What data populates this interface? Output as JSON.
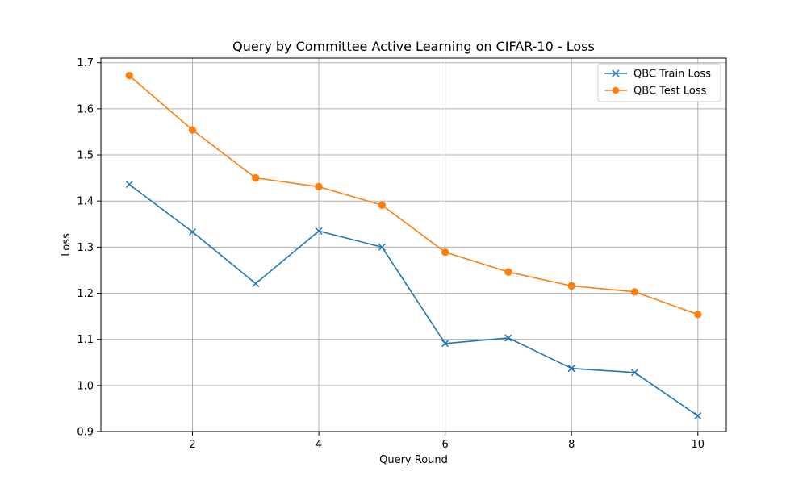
{
  "chart_data": {
    "type": "line",
    "title": "Query by Committee Active Learning on CIFAR-10 - Loss",
    "xlabel": "Query Round",
    "ylabel": "Loss",
    "x": [
      1,
      2,
      3,
      4,
      5,
      6,
      7,
      8,
      9,
      10
    ],
    "xlim": [
      0.55,
      10.45
    ],
    "ylim": [
      0.9,
      1.71
    ],
    "xticks": [
      2,
      4,
      6,
      8,
      10
    ],
    "yticks": [
      0.9,
      1.0,
      1.1,
      1.2,
      1.3,
      1.4,
      1.5,
      1.6,
      1.7
    ],
    "xtick_labels": [
      "2",
      "4",
      "6",
      "8",
      "10"
    ],
    "ytick_labels": [
      "0.9",
      "1.0",
      "1.1",
      "1.2",
      "1.3",
      "1.4",
      "1.5",
      "1.6",
      "1.7"
    ],
    "grid": true,
    "legend_position": "top-right",
    "series": [
      {
        "name": "QBC Train Loss",
        "color": "#1f77b4",
        "marker": "x",
        "values": [
          1.436,
          1.333,
          1.221,
          1.335,
          1.3,
          1.091,
          1.103,
          1.037,
          1.028,
          0.934
        ]
      },
      {
        "name": "QBC Test Loss",
        "color": "#ff7f0e",
        "marker": "o",
        "values": [
          1.672,
          1.554,
          1.45,
          1.431,
          1.391,
          1.289,
          1.246,
          1.216,
          1.203,
          1.154
        ]
      }
    ]
  }
}
